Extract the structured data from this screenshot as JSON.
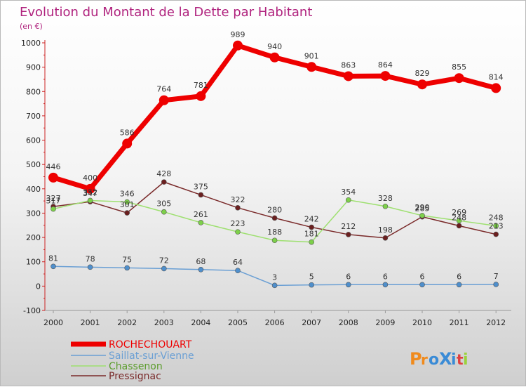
{
  "chart_data": {
    "type": "line",
    "title": "Evolution du Montant de la Dette par Habitant",
    "subtitle": "(en €)",
    "x": [
      "2000",
      "2001",
      "2002",
      "2003",
      "2004",
      "2005",
      "2006",
      "2007",
      "2008",
      "2009",
      "2010",
      "2011",
      "2012"
    ],
    "ylim": [
      -100,
      1000
    ],
    "yticks": [
      -100,
      0,
      100,
      200,
      300,
      400,
      500,
      600,
      700,
      800,
      900,
      1000
    ],
    "grid": false,
    "legend": "bottom-left",
    "series": [
      {
        "name": "ROCHECHOUART",
        "color": "#ee0000",
        "lineWidth": 7,
        "markerR": 7,
        "markerColor": "#ee0000",
        "values": [
          446,
          400,
          586,
          764,
          781,
          989,
          940,
          901,
          863,
          864,
          829,
          855,
          814
        ]
      },
      {
        "name": "Saillat-sur-Vienne",
        "color": "#6a9fd4",
        "lineWidth": 1.5,
        "markerR": 3.5,
        "markerColor": "#4f8fcc",
        "values": [
          81,
          78,
          75,
          72,
          68,
          64,
          3,
          5,
          6,
          6,
          6,
          6,
          7
        ]
      },
      {
        "name": "Chassenon",
        "color": "#9ee070",
        "lineWidth": 1.5,
        "markerR": 3.5,
        "markerColor": "#7dd04a",
        "values": [
          317,
          352,
          346,
          305,
          261,
          223,
          188,
          181,
          354,
          328,
          290,
          269,
          248
        ]
      },
      {
        "name": "Pressignac",
        "color": "#7a2a2a",
        "lineWidth": 1.5,
        "markerR": 3.5,
        "markerColor": "#6b1f1f",
        "values": [
          327,
          347,
          301,
          428,
          375,
          322,
          280,
          242,
          212,
          198,
          285,
          248,
          213
        ]
      }
    ],
    "labels": [
      {
        "series": 0,
        "texts": [
          "446",
          "400",
          "586",
          "764",
          "781",
          "989",
          "940",
          "901",
          "863",
          "864",
          "829",
          "855",
          "814"
        ]
      },
      {
        "series": 1,
        "texts": [
          "81",
          "78",
          "75",
          "72",
          "68",
          "64",
          "3",
          "5",
          "6",
          "6",
          "6",
          "6",
          "7"
        ]
      },
      {
        "series": 2,
        "texts": [
          "317",
          "352",
          "346",
          "305",
          "261",
          "223",
          "188",
          "181",
          "354",
          "328",
          "290",
          "269",
          "248"
        ]
      },
      {
        "series": 3,
        "texts": [
          "327",
          "347",
          "301",
          "428",
          "375",
          "322",
          "280",
          "242",
          "212",
          "198",
          "285",
          "248",
          "213"
        ]
      }
    ]
  },
  "logo": {
    "text": "ProXiti",
    "letters": [
      "P",
      "r",
      "o",
      "X",
      "i",
      "t",
      "i"
    ],
    "colors": [
      "#f08a1c",
      "#f08a1c",
      "#3a8bd6",
      "#3a8bd6",
      "#3a8bd6",
      "#e04040",
      "#9bd23c"
    ]
  }
}
